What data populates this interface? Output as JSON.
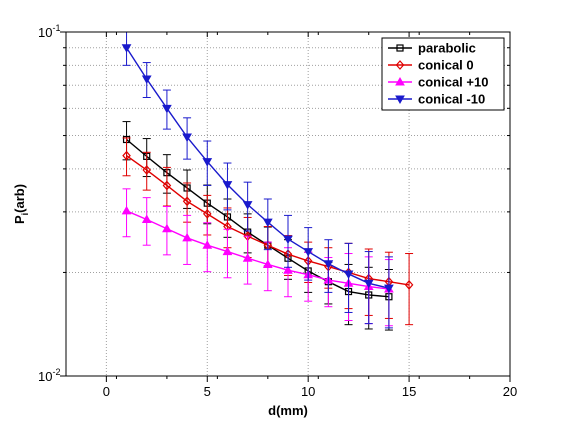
{
  "chart_data": {
    "type": "line",
    "title": "",
    "xlabel": "d(mm)",
    "ylabel_main": "P",
    "ylabel_sub": "i",
    "ylabel_tail": "(arb)",
    "xlim": [
      -2,
      20
    ],
    "ylim": [
      0.01,
      0.1
    ],
    "yscale": "log",
    "x_ticks": [
      0,
      5,
      10,
      15,
      20
    ],
    "x_tick_labels": [
      "0",
      "5",
      "10",
      "15",
      "20"
    ],
    "y_ticks": [
      {
        "value": 0.1,
        "base": "10",
        "exp": "-1"
      },
      {
        "value": 0.01,
        "base": "10",
        "exp": "-2"
      }
    ],
    "grid": true,
    "legend_position": "top-right",
    "series": [
      {
        "name": "parabolic",
        "color": "#000000",
        "marker": "square",
        "x": [
          1,
          2,
          3,
          4,
          5,
          6,
          7,
          8,
          9,
          10,
          11,
          12,
          13,
          14
        ],
        "y": [
          0.0487,
          0.0435,
          0.039,
          0.0352,
          0.0318,
          0.029,
          0.0262,
          0.024,
          0.022,
          0.0202,
          0.0188,
          0.0176,
          0.0172,
          0.017
        ],
        "err": [
          0.0062,
          0.0055,
          0.005,
          0.0045,
          0.0041,
          0.0037,
          0.0034,
          0.0031,
          0.0029,
          0.0027,
          0.0026,
          0.0035,
          0.0035,
          0.0034
        ]
      },
      {
        "name": "conical 0",
        "color": "#e00000",
        "marker": "diamond",
        "x": [
          1,
          2,
          3,
          4,
          5,
          6,
          7,
          8,
          9,
          10,
          11,
          12,
          13,
          14,
          15
        ],
        "y": [
          0.0437,
          0.0397,
          0.0358,
          0.0322,
          0.0296,
          0.0272,
          0.0255,
          0.024,
          0.0226,
          0.0216,
          0.0208,
          0.02,
          0.0192,
          0.0188,
          0.0184
        ],
        "err": [
          0.0055,
          0.005,
          0.0046,
          0.0042,
          0.0039,
          0.0036,
          0.0034,
          0.0032,
          0.003,
          0.0029,
          0.0028,
          0.0043,
          0.0042,
          0.0041,
          0.0043
        ]
      },
      {
        "name": "conical +10",
        "color": "#ff00ff",
        "marker": "triangle-up",
        "x": [
          1,
          2,
          3,
          4,
          5,
          6,
          7,
          8,
          9,
          10,
          11,
          12,
          13,
          14
        ],
        "y": [
          0.0302,
          0.0285,
          0.0268,
          0.0252,
          0.024,
          0.023,
          0.022,
          0.0211,
          0.0203,
          0.0197,
          0.019,
          0.0186,
          0.0182,
          0.0179
        ],
        "err": [
          0.0048,
          0.0045,
          0.0043,
          0.0041,
          0.0039,
          0.0037,
          0.0035,
          0.0034,
          0.0033,
          0.0032,
          0.0031,
          0.0041,
          0.004,
          0.0039
        ]
      },
      {
        "name": "conical -10",
        "color": "#1a1acc",
        "marker": "triangle-down",
        "x": [
          1,
          2,
          3,
          4,
          5,
          6,
          7,
          8,
          9,
          10,
          11,
          12,
          13,
          14
        ],
        "y": [
          0.09,
          0.073,
          0.06,
          0.0495,
          0.042,
          0.036,
          0.0315,
          0.028,
          0.025,
          0.023,
          0.0212,
          0.0198,
          0.0186,
          0.018
        ],
        "err": [
          0.01,
          0.0085,
          0.0078,
          0.0068,
          0.0062,
          0.0056,
          0.0051,
          0.0047,
          0.0043,
          0.004,
          0.0037,
          0.0045,
          0.0044,
          0.0042
        ]
      }
    ]
  }
}
